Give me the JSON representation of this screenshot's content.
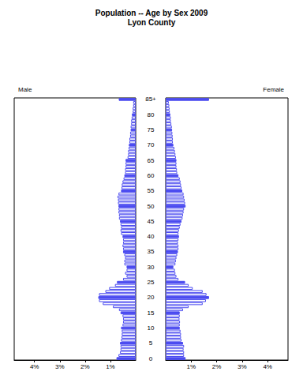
{
  "chart_data": {
    "type": "bar",
    "title": "Population -- Age by Sex 2009",
    "subtitle": "Lyon County",
    "orientation": "horizontal",
    "categories": [
      "0",
      null,
      null,
      null,
      null,
      "5",
      null,
      null,
      null,
      null,
      "10",
      null,
      null,
      null,
      null,
      "15",
      null,
      null,
      null,
      null,
      "20",
      null,
      null,
      null,
      null,
      "25",
      null,
      null,
      null,
      null,
      "30",
      null,
      null,
      null,
      null,
      "35",
      null,
      null,
      null,
      null,
      "40",
      null,
      null,
      null,
      null,
      "45",
      null,
      null,
      null,
      null,
      "50",
      null,
      null,
      null,
      null,
      "55",
      null,
      null,
      null,
      null,
      "60",
      null,
      null,
      null,
      null,
      "65",
      null,
      null,
      null,
      null,
      "70",
      null,
      null,
      null,
      null,
      "75",
      null,
      null,
      null,
      null,
      "80",
      null,
      null,
      null,
      null,
      "85+"
    ],
    "series": [
      {
        "name": "Male",
        "color": "#4b4bf0",
        "colors": [
          "#4b4bf0",
          "#ffffff",
          "#ffffff",
          "#ffffff",
          "#ffffff",
          "#4b4bf0",
          "#ffffff",
          "#ffffff",
          "#ffffff",
          "#ffffff",
          "#4b4bf0",
          "#ffffff",
          "#ffffff",
          "#ffffff",
          "#ffffff",
          "#4b4bf0",
          "#ffffff",
          "#ffffff",
          "#ffffff",
          "#ffffff",
          "#4b4bf0",
          "#ffffff",
          "#ffffff",
          "#ffffff",
          "#ffffff",
          "#4b4bf0",
          "#ffffff",
          "#ffffff",
          "#ffffff",
          "#ffffff",
          "#4b4bf0",
          "#ffffff",
          "#ffffff",
          "#ffffff",
          "#ffffff",
          "#4b4bf0",
          "#ffffff",
          "#ffffff",
          "#ffffff",
          "#ffffff",
          "#4b4bf0",
          "#ffffff",
          "#ffffff",
          "#ffffff",
          "#ffffff",
          "#4b4bf0",
          "#ffffff",
          "#ffffff",
          "#ffffff",
          "#ffffff",
          "#4b4bf0",
          "#ffffff",
          "#ffffff",
          "#ffffff",
          "#ffffff",
          "#4b4bf0",
          "#ffffff",
          "#ffffff",
          "#ffffff",
          "#ffffff",
          "#4b4bf0",
          "#ffffff",
          "#ffffff",
          "#ffffff",
          "#ffffff",
          "#4b4bf0",
          "#ffffff",
          "#ffffff",
          "#ffffff",
          "#ffffff",
          "#4b4bf0",
          "#ffffff",
          "#ffffff",
          "#ffffff",
          "#ffffff",
          "#4b4bf0",
          "#ffffff",
          "#ffffff",
          "#ffffff",
          "#ffffff",
          "#4b4bf0",
          "#ffffff",
          "#ffffff",
          "#ffffff",
          "#ffffff",
          "#4b4bf0"
        ],
        "values": [
          0.76,
          0.68,
          0.62,
          0.6,
          0.6,
          0.62,
          0.58,
          0.56,
          0.55,
          0.55,
          0.58,
          0.52,
          0.5,
          0.5,
          0.52,
          0.6,
          0.66,
          0.9,
          1.3,
          1.45,
          1.48,
          1.45,
          1.2,
          1.05,
          0.82,
          0.74,
          0.5,
          0.36,
          0.42,
          0.36,
          0.36,
          0.45,
          0.45,
          0.42,
          0.45,
          0.5,
          0.5,
          0.52,
          0.5,
          0.5,
          0.52,
          0.58,
          0.6,
          0.58,
          0.6,
          0.62,
          0.66,
          0.66,
          0.68,
          0.68,
          0.68,
          0.7,
          0.7,
          0.72,
          0.68,
          0.58,
          0.56,
          0.55,
          0.52,
          0.48,
          0.45,
          0.42,
          0.42,
          0.4,
          0.4,
          0.4,
          0.32,
          0.3,
          0.3,
          0.28,
          0.27,
          0.25,
          0.25,
          0.22,
          0.22,
          0.2,
          0.2,
          0.18,
          0.18,
          0.16,
          0.15,
          0.12,
          0.12,
          0.1,
          0.1,
          0.67
        ]
      },
      {
        "name": "Female",
        "color": "#4b4bf0",
        "colors": [
          "#4b4bf0",
          "#ffffff",
          "#ffffff",
          "#ffffff",
          "#ffffff",
          "#4b4bf0",
          "#ffffff",
          "#ffffff",
          "#ffffff",
          "#ffffff",
          "#4b4bf0",
          "#ffffff",
          "#ffffff",
          "#ffffff",
          "#ffffff",
          "#4b4bf0",
          "#ffffff",
          "#ffffff",
          "#ffffff",
          "#ffffff",
          "#4b4bf0",
          "#ffffff",
          "#ffffff",
          "#ffffff",
          "#ffffff",
          "#4b4bf0",
          "#ffffff",
          "#ffffff",
          "#ffffff",
          "#ffffff",
          "#4b4bf0",
          "#ffffff",
          "#ffffff",
          "#ffffff",
          "#ffffff",
          "#4b4bf0",
          "#ffffff",
          "#ffffff",
          "#ffffff",
          "#ffffff",
          "#4b4bf0",
          "#ffffff",
          "#ffffff",
          "#ffffff",
          "#ffffff",
          "#4b4bf0",
          "#ffffff",
          "#ffffff",
          "#ffffff",
          "#ffffff",
          "#4b4bf0",
          "#ffffff",
          "#ffffff",
          "#ffffff",
          "#ffffff",
          "#4b4bf0",
          "#ffffff",
          "#ffffff",
          "#ffffff",
          "#ffffff",
          "#4b4bf0",
          "#ffffff",
          "#ffffff",
          "#ffffff",
          "#ffffff",
          "#4b4bf0",
          "#ffffff",
          "#ffffff",
          "#ffffff",
          "#ffffff",
          "#4b4bf0",
          "#ffffff",
          "#ffffff",
          "#ffffff",
          "#ffffff",
          "#4b4bf0",
          "#ffffff",
          "#ffffff",
          "#ffffff",
          "#ffffff",
          "#4b4bf0",
          "#ffffff",
          "#ffffff",
          "#ffffff",
          "#ffffff",
          "#4b4bf0"
        ],
        "values": [
          0.78,
          0.72,
          0.72,
          0.7,
          0.72,
          0.68,
          0.62,
          0.6,
          0.6,
          0.58,
          0.55,
          0.55,
          0.56,
          0.54,
          0.55,
          0.55,
          0.68,
          0.9,
          1.45,
          1.58,
          1.7,
          1.6,
          1.45,
          1.06,
          0.9,
          0.76,
          0.5,
          0.42,
          0.38,
          0.36,
          0.3,
          0.38,
          0.4,
          0.42,
          0.45,
          0.48,
          0.5,
          0.5,
          0.48,
          0.5,
          0.52,
          0.5,
          0.52,
          0.55,
          0.58,
          0.62,
          0.66,
          0.68,
          0.7,
          0.72,
          0.78,
          0.76,
          0.74,
          0.72,
          0.7,
          0.65,
          0.62,
          0.6,
          0.58,
          0.55,
          0.5,
          0.45,
          0.44,
          0.42,
          0.42,
          0.42,
          0.4,
          0.38,
          0.36,
          0.34,
          0.3,
          0.28,
          0.28,
          0.27,
          0.26,
          0.25,
          0.24,
          0.22,
          0.2,
          0.2,
          0.18,
          0.16,
          0.15,
          0.14,
          0.12,
          1.7
        ]
      }
    ],
    "xlim": [
      0,
      4.8
    ],
    "xticks": [
      {
        "value": 1,
        "label": "1%"
      },
      {
        "value": 2,
        "label": "2%"
      },
      {
        "value": 3,
        "label": "3%"
      },
      {
        "value": 4,
        "label": "4%"
      }
    ]
  }
}
